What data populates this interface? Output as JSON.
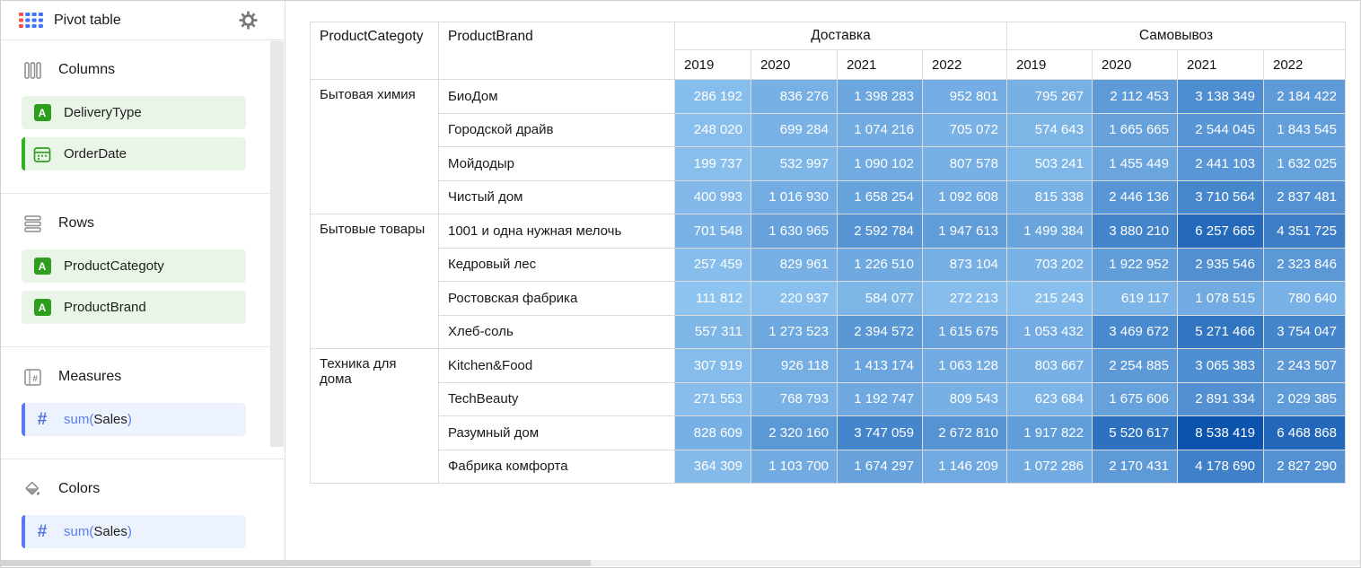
{
  "window": {
    "title": "Pivot table"
  },
  "sidebar": {
    "sections": [
      {
        "label": "Columns",
        "icon": "columns-icon",
        "chips": [
          {
            "label": "DeliveryType",
            "color": "green",
            "icon": "field-type-string-icon",
            "accent": false
          },
          {
            "label": "OrderDate",
            "color": "green",
            "icon": "field-type-date-icon",
            "accent": true
          }
        ]
      },
      {
        "label": "Rows",
        "icon": "rows-icon",
        "chips": [
          {
            "label": "ProductCategoty",
            "color": "green",
            "icon": "field-type-string-icon",
            "accent": false
          },
          {
            "label": "ProductBrand",
            "color": "green",
            "icon": "field-type-string-icon",
            "accent": false
          }
        ]
      },
      {
        "label": "Measures",
        "icon": "measures-icon",
        "chips": [
          {
            "formula": {
              "prefix": "sum(",
              "field": "Sales",
              "suffix": ")"
            },
            "color": "blue",
            "icon": "field-type-number-icon",
            "accent": true
          }
        ]
      },
      {
        "label": "Colors",
        "icon": "colors-icon",
        "chips": [
          {
            "formula": {
              "prefix": "sum(",
              "field": "Sales",
              "suffix": ")"
            },
            "color": "blue",
            "icon": "field-type-number-icon",
            "accent": true
          }
        ]
      }
    ]
  },
  "table": {
    "row_headers": [
      "ProductCategoty",
      "ProductBrand"
    ],
    "groups": [
      {
        "label": "Доставка",
        "years": [
          "2019",
          "2020",
          "2021",
          "2022"
        ]
      },
      {
        "label": "Самовывоз",
        "years": [
          "2019",
          "2020",
          "2021",
          "2022"
        ]
      }
    ],
    "categories": [
      {
        "name": "Бытовая химия",
        "brands": [
          {
            "name": "БиоДом",
            "values": [
              286192,
              836276,
              1398283,
              952801,
              795267,
              2112453,
              3138349,
              2184422
            ]
          },
          {
            "name": "Городской драйв",
            "values": [
              248020,
              699284,
              1074216,
              705072,
              574643,
              1665665,
              2544045,
              1843545
            ]
          },
          {
            "name": "Мойдодыр",
            "values": [
              199737,
              532997,
              1090102,
              807578,
              503241,
              1455449,
              2441103,
              1632025
            ]
          },
          {
            "name": "Чистый дом",
            "values": [
              400993,
              1016930,
              1658254,
              1092608,
              815338,
              2446136,
              3710564,
              2837481
            ]
          }
        ]
      },
      {
        "name": "Бытовые товары",
        "brands": [
          {
            "name": "1001 и одна нужная мелочь",
            "values": [
              701548,
              1630965,
              2592784,
              1947613,
              1499384,
              3880210,
              6257665,
              4351725
            ]
          },
          {
            "name": "Кедровый лес",
            "values": [
              257459,
              829961,
              1226510,
              873104,
              703202,
              1922952,
              2935546,
              2323846
            ]
          },
          {
            "name": "Ростовская фабрика",
            "values": [
              111812,
              220937,
              584077,
              272213,
              215243,
              619117,
              1078515,
              780640
            ]
          },
          {
            "name": "Хлеб-соль",
            "values": [
              557311,
              1273523,
              2394572,
              1615675,
              1053432,
              3469672,
              5271466,
              3754047
            ]
          }
        ]
      },
      {
        "name": "Техника для дома",
        "brands": [
          {
            "name": "Kitchen&Food",
            "values": [
              307919,
              926118,
              1413174,
              1063128,
              803667,
              2254885,
              3065383,
              2243507
            ]
          },
          {
            "name": "TechBeauty",
            "values": [
              271553,
              768793,
              1192747,
              809543,
              623684,
              1675606,
              2891334,
              2029385
            ]
          },
          {
            "name": "Разумный дом",
            "values": [
              828609,
              2320160,
              3747059,
              2672810,
              1917822,
              5520617,
              8538419,
              6468868
            ]
          },
          {
            "name": "Фабрика комфорта",
            "values": [
              364309,
              1103700,
              1674297,
              1146209,
              1072286,
              2170431,
              4178690,
              2827290
            ]
          }
        ]
      }
    ],
    "color_scale": {
      "min": 111812,
      "max": 8538419,
      "light": "#8ec4f0",
      "dark": "#0b53ad",
      "gamma": 0.7
    }
  }
}
